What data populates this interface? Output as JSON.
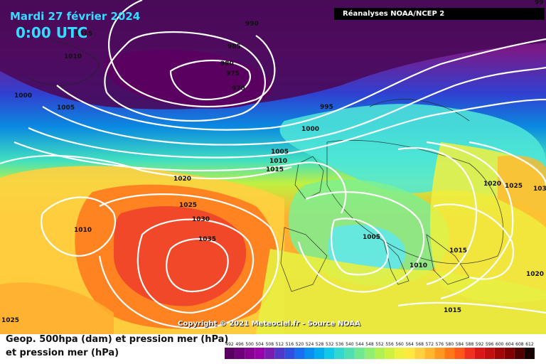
{
  "header": {
    "date": "Mardi 27 février 2024",
    "time": "0:00 UTC",
    "source": "Réanalyses NOAA/NCEP 2"
  },
  "footer": {
    "copyright": "Copyright © 2021 Meteociel.fr - Source NOAA",
    "legend_title_1": "Geop. 500hpa (dam) et pression mer (hPa)",
    "legend_title_2": "et pression mer (hPa)"
  },
  "isobar_labels": [
    "990",
    "985",
    "980",
    "975",
    "970",
    "995",
    "1000",
    "1005",
    "1010",
    "1015",
    "1020",
    "1025",
    "1030",
    "1035",
    "1010",
    "1000",
    "1005",
    "1020",
    "1025",
    "1015",
    "1010",
    "1020",
    "1015",
    "1005",
    "103",
    "1025",
    "1015",
    "1010",
    "1020",
    "99"
  ],
  "legend": {
    "ticks": [
      "492",
      "496",
      "500",
      "504",
      "508",
      "512",
      "516",
      "520",
      "524",
      "528",
      "532",
      "536",
      "540",
      "544",
      "548",
      "552",
      "556",
      "560",
      "564",
      "568",
      "572",
      "576",
      "580",
      "584",
      "588",
      "592",
      "596",
      "600",
      "604",
      "608",
      "612"
    ],
    "colors": [
      "#5a0060",
      "#6e0078",
      "#860092",
      "#9a00aa",
      "#7a1cb0",
      "#5038c8",
      "#3050e0",
      "#1870f0",
      "#0890f0",
      "#00aef0",
      "#10c8e8",
      "#30d8d0",
      "#50e0b0",
      "#70e890",
      "#90ee70",
      "#b0f050",
      "#d0f040",
      "#eef040",
      "#ffe840",
      "#ffd040",
      "#ffb830",
      "#ff9820",
      "#ff7818",
      "#ff5818",
      "#f03020",
      "#d81818",
      "#c01010",
      "#a00808",
      "#800000",
      "#500000",
      "#180000"
    ]
  }
}
